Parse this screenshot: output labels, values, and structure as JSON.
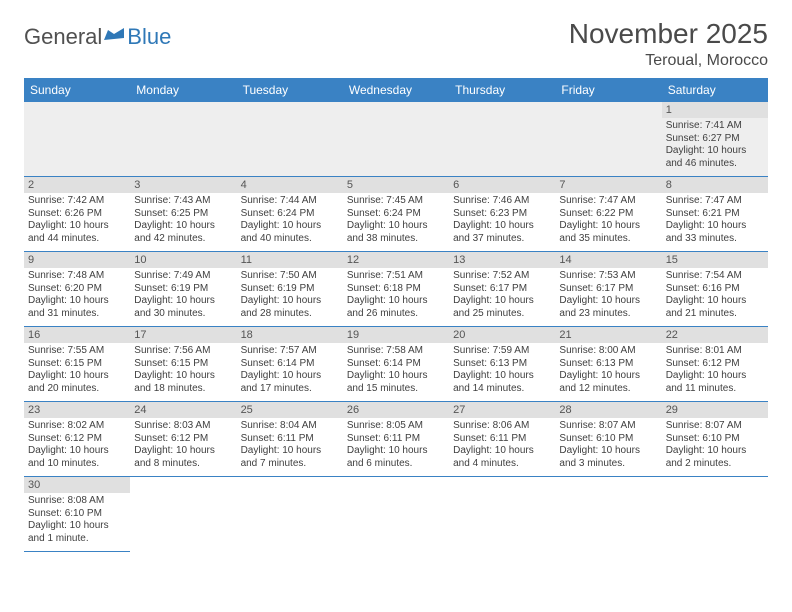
{
  "branding": {
    "logo_part1": "General",
    "logo_part2": "Blue",
    "logo_color1": "#505050",
    "logo_color2": "#2f78b7"
  },
  "header": {
    "month_title": "November 2025",
    "location": "Teroual, Morocco"
  },
  "styling": {
    "header_row_bg": "#3a82c4",
    "header_row_text": "#ffffff",
    "daynum_bg": "#e0e0e0",
    "row_border": "#3a82c4",
    "empty_bg": "#eeeeee",
    "body_text": "#3f3f3f",
    "font_family": "Arial",
    "title_fontsize": 28,
    "location_fontsize": 16,
    "header_fontsize": 12,
    "cell_fontsize": 10
  },
  "weekdays": [
    "Sunday",
    "Monday",
    "Tuesday",
    "Wednesday",
    "Thursday",
    "Friday",
    "Saturday"
  ],
  "weeks": [
    [
      null,
      null,
      null,
      null,
      null,
      null,
      {
        "n": "1",
        "sr": "Sunrise: 7:41 AM",
        "ss": "Sunset: 6:27 PM",
        "d1": "Daylight: 10 hours",
        "d2": "and 46 minutes."
      }
    ],
    [
      {
        "n": "2",
        "sr": "Sunrise: 7:42 AM",
        "ss": "Sunset: 6:26 PM",
        "d1": "Daylight: 10 hours",
        "d2": "and 44 minutes."
      },
      {
        "n": "3",
        "sr": "Sunrise: 7:43 AM",
        "ss": "Sunset: 6:25 PM",
        "d1": "Daylight: 10 hours",
        "d2": "and 42 minutes."
      },
      {
        "n": "4",
        "sr": "Sunrise: 7:44 AM",
        "ss": "Sunset: 6:24 PM",
        "d1": "Daylight: 10 hours",
        "d2": "and 40 minutes."
      },
      {
        "n": "5",
        "sr": "Sunrise: 7:45 AM",
        "ss": "Sunset: 6:24 PM",
        "d1": "Daylight: 10 hours",
        "d2": "and 38 minutes."
      },
      {
        "n": "6",
        "sr": "Sunrise: 7:46 AM",
        "ss": "Sunset: 6:23 PM",
        "d1": "Daylight: 10 hours",
        "d2": "and 37 minutes."
      },
      {
        "n": "7",
        "sr": "Sunrise: 7:47 AM",
        "ss": "Sunset: 6:22 PM",
        "d1": "Daylight: 10 hours",
        "d2": "and 35 minutes."
      },
      {
        "n": "8",
        "sr": "Sunrise: 7:47 AM",
        "ss": "Sunset: 6:21 PM",
        "d1": "Daylight: 10 hours",
        "d2": "and 33 minutes."
      }
    ],
    [
      {
        "n": "9",
        "sr": "Sunrise: 7:48 AM",
        "ss": "Sunset: 6:20 PM",
        "d1": "Daylight: 10 hours",
        "d2": "and 31 minutes."
      },
      {
        "n": "10",
        "sr": "Sunrise: 7:49 AM",
        "ss": "Sunset: 6:19 PM",
        "d1": "Daylight: 10 hours",
        "d2": "and 30 minutes."
      },
      {
        "n": "11",
        "sr": "Sunrise: 7:50 AM",
        "ss": "Sunset: 6:19 PM",
        "d1": "Daylight: 10 hours",
        "d2": "and 28 minutes."
      },
      {
        "n": "12",
        "sr": "Sunrise: 7:51 AM",
        "ss": "Sunset: 6:18 PM",
        "d1": "Daylight: 10 hours",
        "d2": "and 26 minutes."
      },
      {
        "n": "13",
        "sr": "Sunrise: 7:52 AM",
        "ss": "Sunset: 6:17 PM",
        "d1": "Daylight: 10 hours",
        "d2": "and 25 minutes."
      },
      {
        "n": "14",
        "sr": "Sunrise: 7:53 AM",
        "ss": "Sunset: 6:17 PM",
        "d1": "Daylight: 10 hours",
        "d2": "and 23 minutes."
      },
      {
        "n": "15",
        "sr": "Sunrise: 7:54 AM",
        "ss": "Sunset: 6:16 PM",
        "d1": "Daylight: 10 hours",
        "d2": "and 21 minutes."
      }
    ],
    [
      {
        "n": "16",
        "sr": "Sunrise: 7:55 AM",
        "ss": "Sunset: 6:15 PM",
        "d1": "Daylight: 10 hours",
        "d2": "and 20 minutes."
      },
      {
        "n": "17",
        "sr": "Sunrise: 7:56 AM",
        "ss": "Sunset: 6:15 PM",
        "d1": "Daylight: 10 hours",
        "d2": "and 18 minutes."
      },
      {
        "n": "18",
        "sr": "Sunrise: 7:57 AM",
        "ss": "Sunset: 6:14 PM",
        "d1": "Daylight: 10 hours",
        "d2": "and 17 minutes."
      },
      {
        "n": "19",
        "sr": "Sunrise: 7:58 AM",
        "ss": "Sunset: 6:14 PM",
        "d1": "Daylight: 10 hours",
        "d2": "and 15 minutes."
      },
      {
        "n": "20",
        "sr": "Sunrise: 7:59 AM",
        "ss": "Sunset: 6:13 PM",
        "d1": "Daylight: 10 hours",
        "d2": "and 14 minutes."
      },
      {
        "n": "21",
        "sr": "Sunrise: 8:00 AM",
        "ss": "Sunset: 6:13 PM",
        "d1": "Daylight: 10 hours",
        "d2": "and 12 minutes."
      },
      {
        "n": "22",
        "sr": "Sunrise: 8:01 AM",
        "ss": "Sunset: 6:12 PM",
        "d1": "Daylight: 10 hours",
        "d2": "and 11 minutes."
      }
    ],
    [
      {
        "n": "23",
        "sr": "Sunrise: 8:02 AM",
        "ss": "Sunset: 6:12 PM",
        "d1": "Daylight: 10 hours",
        "d2": "and 10 minutes."
      },
      {
        "n": "24",
        "sr": "Sunrise: 8:03 AM",
        "ss": "Sunset: 6:12 PM",
        "d1": "Daylight: 10 hours",
        "d2": "and 8 minutes."
      },
      {
        "n": "25",
        "sr": "Sunrise: 8:04 AM",
        "ss": "Sunset: 6:11 PM",
        "d1": "Daylight: 10 hours",
        "d2": "and 7 minutes."
      },
      {
        "n": "26",
        "sr": "Sunrise: 8:05 AM",
        "ss": "Sunset: 6:11 PM",
        "d1": "Daylight: 10 hours",
        "d2": "and 6 minutes."
      },
      {
        "n": "27",
        "sr": "Sunrise: 8:06 AM",
        "ss": "Sunset: 6:11 PM",
        "d1": "Daylight: 10 hours",
        "d2": "and 4 minutes."
      },
      {
        "n": "28",
        "sr": "Sunrise: 8:07 AM",
        "ss": "Sunset: 6:10 PM",
        "d1": "Daylight: 10 hours",
        "d2": "and 3 minutes."
      },
      {
        "n": "29",
        "sr": "Sunrise: 8:07 AM",
        "ss": "Sunset: 6:10 PM",
        "d1": "Daylight: 10 hours",
        "d2": "and 2 minutes."
      }
    ],
    [
      {
        "n": "30",
        "sr": "Sunrise: 8:08 AM",
        "ss": "Sunset: 6:10 PM",
        "d1": "Daylight: 10 hours",
        "d2": "and 1 minute."
      },
      null,
      null,
      null,
      null,
      null,
      null
    ]
  ]
}
